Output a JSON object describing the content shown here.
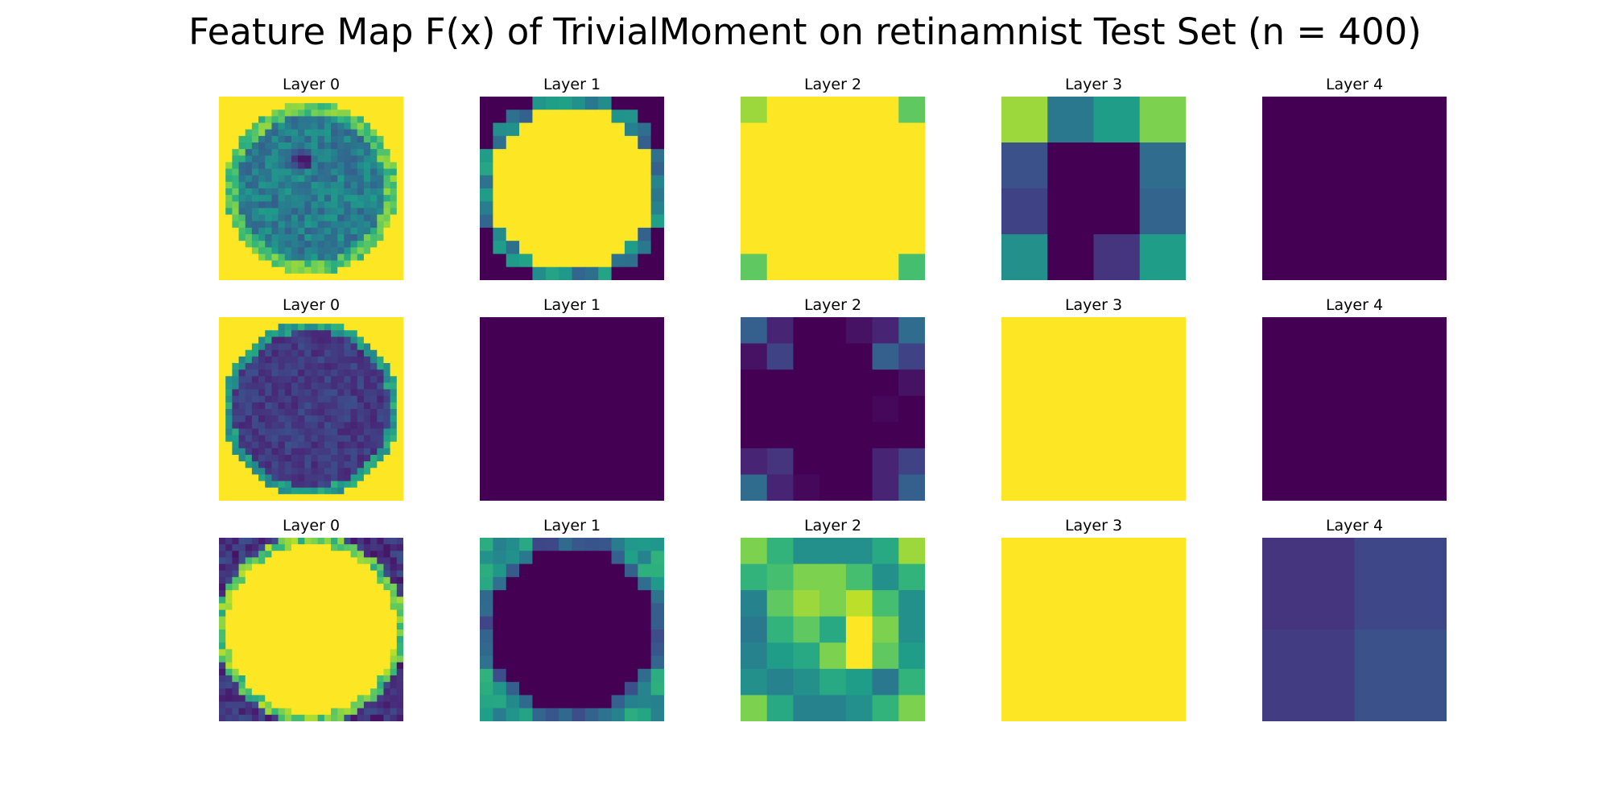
{
  "title": "Feature Map F(x) of TrivialMoment on retinamnist Test Set (n = 400)",
  "colormap": "viridis",
  "colormap_stops": [
    "#440154",
    "#482878",
    "#3e4989",
    "#31688e",
    "#26828e",
    "#1f9e89",
    "#35b779",
    "#6ece58",
    "#b5de2b",
    "#fde725"
  ],
  "chart_data": {
    "type": "heatmap",
    "grid": {
      "rows": 3,
      "cols": 5
    },
    "panels": [
      {
        "title": "Layer 0",
        "generator": "retina_disk",
        "size": 28,
        "invert": false
      },
      {
        "title": "Layer 1",
        "size": 14,
        "generator": "disk_corners",
        "inside": 1.0,
        "outside": 0.0,
        "edge": 0.45
      },
      {
        "title": "Layer 2",
        "size": 7,
        "matrix": [
          [
            0.85,
            1,
            1,
            1,
            1,
            1,
            0.75
          ],
          [
            1,
            1,
            1,
            1,
            1,
            1,
            1
          ],
          [
            1,
            1,
            1,
            1,
            1,
            1,
            1
          ],
          [
            1,
            1,
            1,
            1,
            1,
            1,
            1
          ],
          [
            1,
            1,
            1,
            1,
            1,
            1,
            1
          ],
          [
            1,
            1,
            1,
            1,
            1,
            1,
            1
          ],
          [
            0.75,
            1,
            1,
            1,
            1,
            1,
            0.7
          ]
        ]
      },
      {
        "title": "Layer 3",
        "size": 4,
        "matrix": [
          [
            0.85,
            0.4,
            0.55,
            0.8
          ],
          [
            0.25,
            0.0,
            0.0,
            0.35
          ],
          [
            0.2,
            0.0,
            0.0,
            0.32
          ],
          [
            0.5,
            0.0,
            0.15,
            0.55
          ]
        ]
      },
      {
        "title": "Layer 4",
        "size": 2,
        "matrix": [
          [
            0,
            0
          ],
          [
            0,
            0
          ]
        ]
      },
      {
        "title": "Layer 0",
        "generator": "retina_disk_dark",
        "size": 28,
        "invert": false
      },
      {
        "title": "Layer 1",
        "size": 14,
        "generator": "constant",
        "value": 0.0
      },
      {
        "title": "Layer 2",
        "size": 7,
        "matrix": [
          [
            0.3,
            0.1,
            0,
            0,
            0.05,
            0.1,
            0.35
          ],
          [
            0.05,
            0.2,
            0,
            0,
            0,
            0.3,
            0.2
          ],
          [
            0,
            0,
            0,
            0,
            0,
            0,
            0.05
          ],
          [
            0,
            0,
            0,
            0,
            0,
            0.02,
            0
          ],
          [
            0,
            0,
            0,
            0,
            0,
            0,
            0
          ],
          [
            0.1,
            0.15,
            0,
            0,
            0,
            0.1,
            0.2
          ],
          [
            0.35,
            0.1,
            0.02,
            0,
            0,
            0.1,
            0.3
          ]
        ]
      },
      {
        "title": "Layer 3",
        "size": 4,
        "generator": "constant",
        "value": 1.0
      },
      {
        "title": "Layer 4",
        "size": 2,
        "matrix": [
          [
            0,
            0
          ],
          [
            0,
            0
          ]
        ]
      },
      {
        "title": "Layer 0",
        "generator": "yellow_disk",
        "size": 28
      },
      {
        "title": "Layer 1",
        "size": 14,
        "generator": "ring_teal"
      },
      {
        "title": "Layer 2",
        "size": 7,
        "matrix": [
          [
            0.8,
            0.65,
            0.5,
            0.5,
            0.5,
            0.6,
            0.85
          ],
          [
            0.65,
            0.7,
            0.8,
            0.8,
            0.7,
            0.5,
            0.65
          ],
          [
            0.45,
            0.75,
            0.85,
            0.8,
            0.9,
            0.7,
            0.5
          ],
          [
            0.4,
            0.65,
            0.75,
            0.6,
            1.0,
            0.8,
            0.5
          ],
          [
            0.45,
            0.55,
            0.6,
            0.8,
            1.0,
            0.75,
            0.55
          ],
          [
            0.5,
            0.45,
            0.5,
            0.6,
            0.55,
            0.4,
            0.65
          ],
          [
            0.8,
            0.6,
            0.45,
            0.45,
            0.5,
            0.65,
            0.8
          ]
        ]
      },
      {
        "title": "Layer 3",
        "size": 4,
        "generator": "constant",
        "value": 1.0
      },
      {
        "title": "Layer 4",
        "size": 2,
        "matrix": [
          [
            0.15,
            0.22
          ],
          [
            0.18,
            0.25
          ]
        ]
      }
    ]
  }
}
